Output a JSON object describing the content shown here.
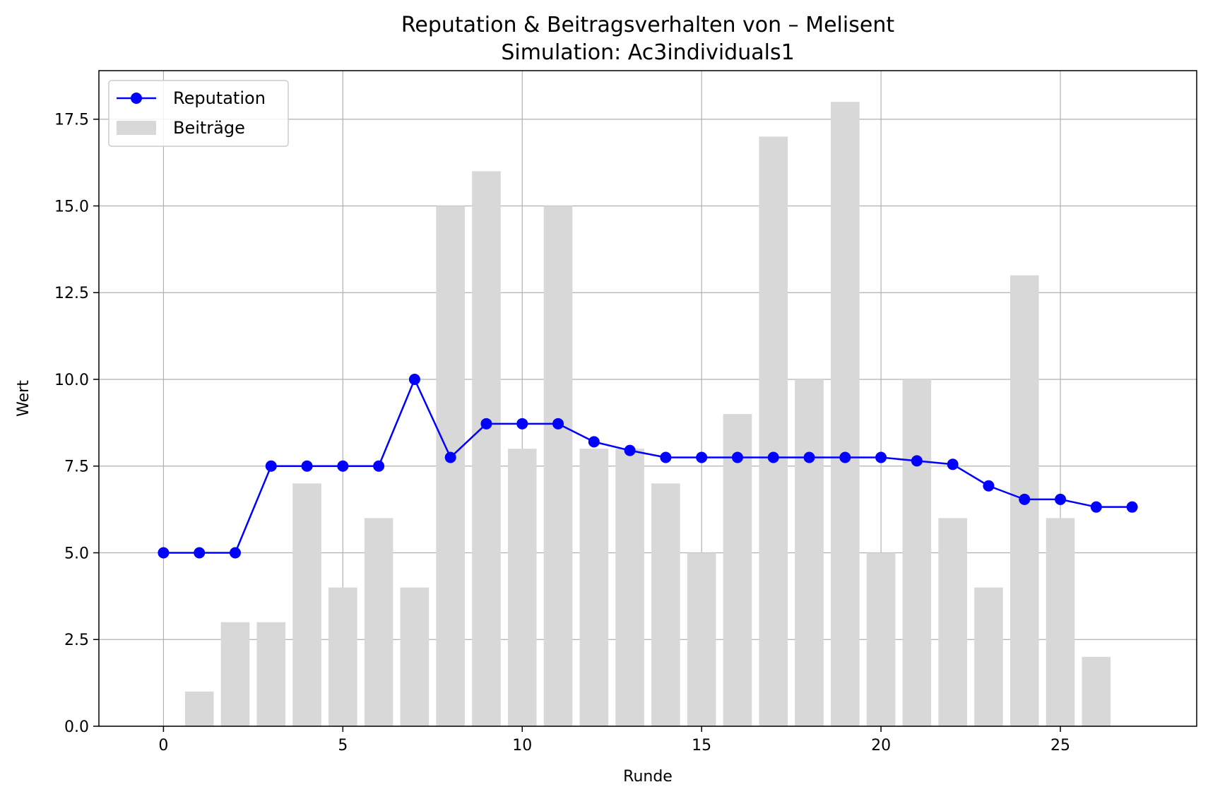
{
  "chart_data": {
    "type": "bar",
    "title": "Reputation & Beitragsverhalten von – Melisent",
    "subtitle": "Simulation: Ac3individuals1",
    "xlabel": "Runde",
    "ylabel": "Wert",
    "xlim": [
      -1.8,
      28.8
    ],
    "ylim": [
      0,
      18.9
    ],
    "x_ticks": [
      0,
      5,
      10,
      15,
      20,
      25
    ],
    "x_tick_labels": [
      "0",
      "5",
      "10",
      "15",
      "20",
      "25"
    ],
    "y_ticks": [
      0,
      2.5,
      5,
      7.5,
      10,
      12.5,
      15,
      17.5
    ],
    "y_tick_labels": [
      "0.0",
      "2.5",
      "5.0",
      "7.5",
      "10.0",
      "12.5",
      "15.0",
      "17.5"
    ],
    "grid": true,
    "legend_position": "top-left",
    "series": [
      {
        "name": "Reputation",
        "type": "line",
        "color": "#0000ff",
        "x": [
          0,
          1,
          2,
          3,
          4,
          5,
          6,
          7,
          8,
          9,
          10,
          11,
          12,
          13,
          14,
          15,
          16,
          17,
          18,
          19,
          20,
          21,
          22,
          23,
          24,
          25,
          26,
          27
        ],
        "values": [
          5.0,
          5.0,
          5.0,
          7.5,
          7.5,
          7.5,
          7.5,
          10.0,
          7.75,
          8.72,
          8.72,
          8.72,
          8.2,
          7.95,
          7.75,
          7.75,
          7.75,
          7.75,
          7.75,
          7.75,
          7.75,
          7.65,
          7.55,
          6.93,
          6.54,
          6.54,
          6.32,
          6.32
        ]
      },
      {
        "name": "Beiträge",
        "type": "bar",
        "color": "#d8d8d8",
        "x": [
          0,
          1,
          2,
          3,
          4,
          5,
          6,
          7,
          8,
          9,
          10,
          11,
          12,
          13,
          14,
          15,
          16,
          17,
          18,
          19,
          20,
          21,
          22,
          23,
          24,
          25,
          26,
          27
        ],
        "values": [
          0,
          1,
          3,
          3,
          7,
          4,
          6,
          4,
          15,
          16,
          8,
          15,
          8,
          8,
          7,
          5,
          9,
          17,
          10,
          18,
          5,
          10,
          6,
          4,
          13,
          6,
          2,
          0
        ]
      }
    ]
  }
}
